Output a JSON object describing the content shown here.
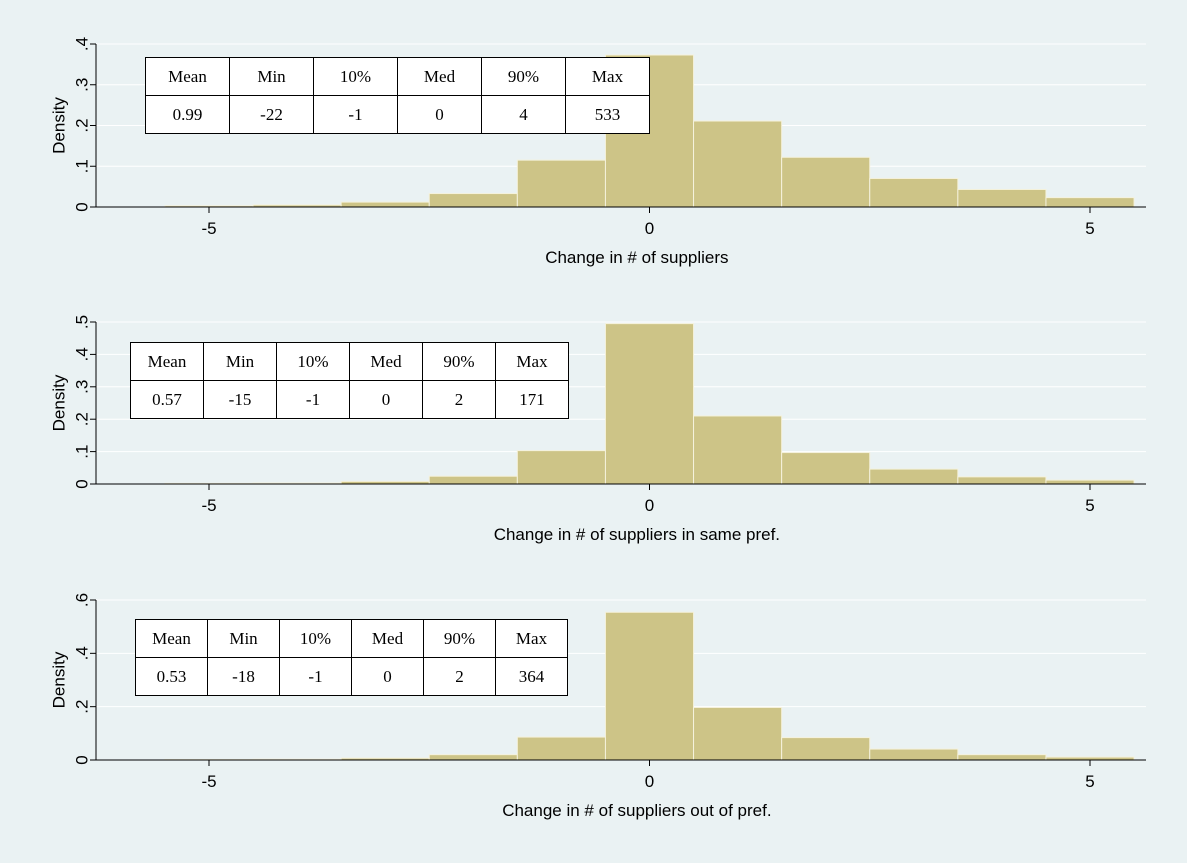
{
  "colors": {
    "background": "#eaf2f3",
    "bar_fill": "#cdc487",
    "bar_edge": "#f5f2dc",
    "gridline": "#ffffff",
    "axis": "#000000"
  },
  "chart_data": [
    {
      "type": "bar",
      "title": "",
      "xlabel": "Change in # of suppliers",
      "ylabel": "Density",
      "bin_width": 1,
      "bin_centers": [
        -5,
        -4,
        -3,
        -2,
        -1,
        0,
        1,
        2,
        3,
        4,
        5
      ],
      "values": [
        0.003,
        0.005,
        0.012,
        0.033,
        0.115,
        0.373,
        0.211,
        0.122,
        0.07,
        0.043,
        0.023
      ],
      "xlim": [
        -6,
        5.6
      ],
      "ylim": [
        0,
        0.4
      ],
      "xticks": [
        -5,
        0,
        5
      ],
      "yticks": [
        0,
        0.1,
        0.2,
        0.3,
        0.4
      ],
      "ytick_labels": [
        "0",
        ".1",
        ".2",
        ".3",
        ".4"
      ],
      "grid": true,
      "stats": {
        "headers": [
          "Mean",
          "Min",
          "10%",
          "Med",
          "90%",
          "Max"
        ],
        "values": [
          "0.99",
          "-22",
          "-1",
          "0",
          "4",
          "533"
        ]
      }
    },
    {
      "type": "bar",
      "title": "",
      "xlabel": "Change in # of suppliers in same pref.",
      "ylabel": "Density",
      "bin_width": 1,
      "bin_centers": [
        -5,
        -4,
        -3,
        -2,
        -1,
        0,
        1,
        2,
        3,
        4,
        5
      ],
      "values": [
        0.002,
        0.003,
        0.008,
        0.024,
        0.103,
        0.495,
        0.21,
        0.097,
        0.046,
        0.022,
        0.012
      ],
      "xlim": [
        -6,
        5.6
      ],
      "ylim": [
        0,
        0.5
      ],
      "xticks": [
        -5,
        0,
        5
      ],
      "yticks": [
        0,
        0.1,
        0.2,
        0.3,
        0.4,
        0.5
      ],
      "ytick_labels": [
        "0",
        ".1",
        ".2",
        ".3",
        ".4",
        ".5"
      ],
      "grid": true,
      "stats": {
        "headers": [
          "Mean",
          "Min",
          "10%",
          "Med",
          "90%",
          "Max"
        ],
        "values": [
          "0.57",
          "-15",
          "-1",
          "0",
          "2",
          "171"
        ]
      }
    },
    {
      "type": "bar",
      "title": "",
      "xlabel": "Change in # of suppliers out of pref.",
      "ylabel": "Density",
      "bin_width": 1,
      "bin_centers": [
        -5,
        -4,
        -3,
        -2,
        -1,
        0,
        1,
        2,
        3,
        4,
        5
      ],
      "values": [
        0.002,
        0.003,
        0.007,
        0.02,
        0.086,
        0.554,
        0.197,
        0.084,
        0.041,
        0.02,
        0.011
      ],
      "xlim": [
        -6,
        5.6
      ],
      "ylim": [
        0,
        0.6
      ],
      "xticks": [
        -5,
        0,
        5
      ],
      "yticks": [
        0,
        0.2,
        0.4,
        0.6
      ],
      "ytick_labels": [
        "0",
        ".2",
        ".4",
        ".6"
      ],
      "grid": true,
      "stats": {
        "headers": [
          "Mean",
          "Min",
          "10%",
          "Med",
          "90%",
          "Max"
        ],
        "values": [
          "0.53",
          "-18",
          "-1",
          "0",
          "2",
          "364"
        ]
      }
    }
  ]
}
